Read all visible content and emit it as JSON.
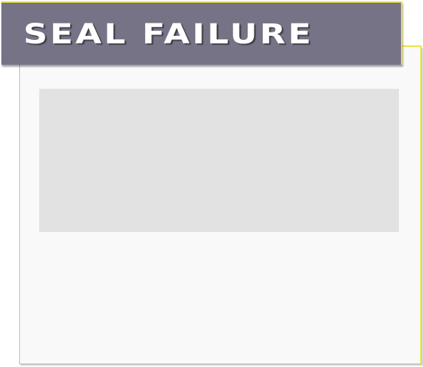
{
  "dialog": {
    "title": "SEAL FAILURE"
  },
  "colors": {
    "title_bar": "#777386",
    "accent": "#e8e23a",
    "panel": "#f9f9f9",
    "media_placeholder": "#e2e2e2",
    "title_text": "#ffffff"
  }
}
